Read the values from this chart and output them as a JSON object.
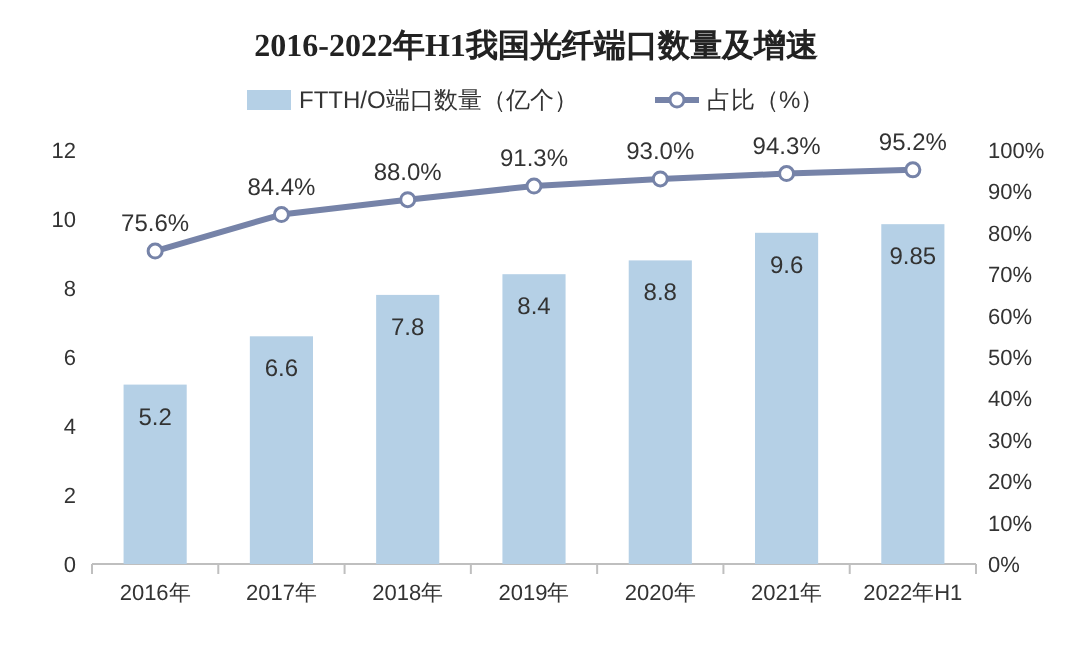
{
  "chart_data": {
    "type": "bar",
    "title": "2016-2022年H1我国光纤端口数量及增速",
    "categories": [
      "2016年",
      "2017年",
      "2018年",
      "2019年",
      "2020年",
      "2021年",
      "2022年H1"
    ],
    "series": [
      {
        "name": "FTTH/O端口数量（亿个）",
        "color": "#b5d0e6",
        "values": [
          5.2,
          6.6,
          7.8,
          8.4,
          8.8,
          9.6,
          9.85
        ],
        "value_labels": [
          "5.2",
          "6.6",
          "7.8",
          "8.4",
          "8.8",
          "9.6",
          "9.85"
        ]
      },
      {
        "name": "占比（%）",
        "type": "line",
        "axis": "y2",
        "color": "#7683a8",
        "values": [
          75.6,
          84.4,
          88.0,
          91.3,
          93.0,
          94.3,
          95.2
        ],
        "value_labels": [
          "75.6%",
          "84.4%",
          "88.0%",
          "91.3%",
          "93.0%",
          "94.3%",
          "95.2%"
        ]
      }
    ],
    "ylim": [
      0,
      12
    ],
    "yticks": [
      0,
      2,
      4,
      6,
      8,
      10,
      12
    ],
    "y2lim": [
      0,
      100
    ],
    "y2ticks": [
      {
        "value": 0,
        "label": "0%"
      },
      {
        "value": 10,
        "label": "10%"
      },
      {
        "value": 20,
        "label": "20%"
      },
      {
        "value": 30,
        "label": "30%"
      },
      {
        "value": 40,
        "label": "40%"
      },
      {
        "value": 50,
        "label": "50%"
      },
      {
        "value": 60,
        "label": "60%"
      },
      {
        "value": 70,
        "label": "70%"
      },
      {
        "value": 80,
        "label": "80%"
      },
      {
        "value": 90,
        "label": "90%"
      },
      {
        "value": 100,
        "label": "100%"
      }
    ],
    "legend": "top",
    "marker": "circle"
  }
}
